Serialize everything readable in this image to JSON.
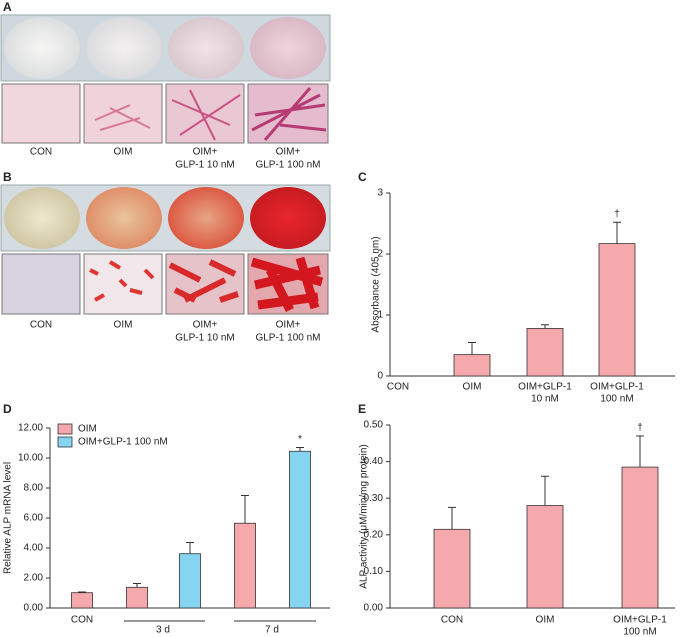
{
  "panels": [
    {
      "label": "A",
      "captions": [
        [
          "CON"
        ],
        [
          "OIM"
        ],
        [
          "OIM+",
          "GLP-1 10 nM"
        ],
        [
          "OIM+",
          "GLP-1 100 nM"
        ]
      ]
    },
    {
      "label": "B",
      "captions": [
        [
          "CON"
        ],
        [
          "OIM"
        ],
        [
          "OIM+",
          "GLP-1 10 nM"
        ],
        [
          "OIM+",
          "GLP-1 100 nM"
        ]
      ]
    }
  ],
  "chart_data": [
    {
      "type": "bar",
      "label": "C",
      "y_label": "Absorbance (405 nm)",
      "categories": [
        [
          "CON"
        ],
        [
          "OIM"
        ],
        [
          "OIM+GLP-1",
          "10 nM"
        ],
        [
          "OIM+GLP-1",
          "100 nM"
        ]
      ],
      "series": [
        {
          "color": "#f5a9ad",
          "values": [
            0,
            0.35,
            0.78,
            2.17
          ],
          "errors": [
            0,
            0.2,
            0.06,
            0.35
          ],
          "annotations": [
            null,
            null,
            null,
            "†"
          ]
        }
      ],
      "ylim": [
        0,
        3
      ],
      "yticks": [
        0,
        1,
        2,
        3
      ]
    },
    {
      "type": "bar",
      "label": "D",
      "y_label": "Relative ALP mRNA level",
      "categories": [
        [
          "CON"
        ],
        [
          "3 d"
        ],
        [
          "7 d"
        ]
      ],
      "series": [
        {
          "name": "OIM",
          "color": "#f5a9ad",
          "values": [
            1.02,
            1.38,
            5.65
          ],
          "errors": [
            0.05,
            0.25,
            1.85
          ],
          "annotations": [
            null,
            null,
            null
          ]
        },
        {
          "name": "OIM+GLP-1 100 nM",
          "color": "#86d5f0",
          "values": [
            null,
            3.62,
            10.45
          ],
          "errors": [
            null,
            0.75,
            0.25
          ],
          "annotations": [
            null,
            null,
            "*"
          ]
        }
      ],
      "ylim": [
        0,
        12
      ],
      "yticks": [
        {
          "value": 0,
          "label": "0.00"
        },
        {
          "value": 2,
          "label": "2.00"
        },
        {
          "value": 4,
          "label": "4.00"
        },
        {
          "value": 6,
          "label": "6.00"
        },
        {
          "value": 8,
          "label": "8.00"
        },
        {
          "value": 10,
          "label": "10.00"
        },
        {
          "value": 12,
          "label": "12.00"
        }
      ]
    },
    {
      "type": "bar",
      "label": "E",
      "y_label": "ALP activity (μM/min/mg protein)",
      "categories": [
        [
          "CON"
        ],
        [
          "OIM"
        ],
        [
          "OIM+GLP-1",
          "100 nM"
        ]
      ],
      "series": [
        {
          "color": "#f5a9ad",
          "values": [
            0.215,
            0.28,
            0.385
          ],
          "errors": [
            0.06,
            0.08,
            0.085
          ],
          "annotations": [
            null,
            null,
            "†"
          ]
        }
      ],
      "ylim": [
        0,
        0.5
      ],
      "yticks": [
        {
          "value": 0,
          "label": "0.00"
        },
        {
          "value": 0.1,
          "label": "0.10"
        },
        {
          "value": 0.2,
          "label": "0.20"
        },
        {
          "value": 0.3,
          "label": "0.30"
        },
        {
          "value": 0.4,
          "label": "0.40"
        },
        {
          "value": 0.5,
          "label": "0.50"
        }
      ]
    }
  ]
}
